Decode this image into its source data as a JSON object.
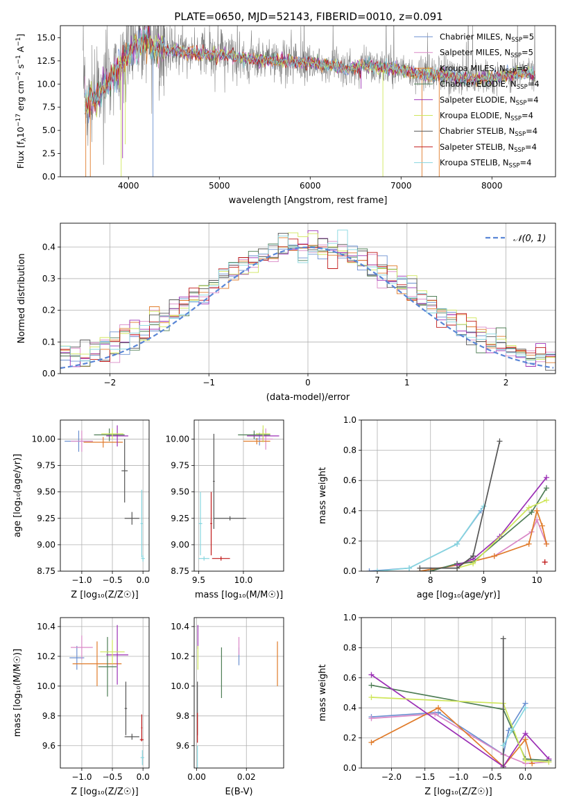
{
  "title": "PLATE=0650, MJD=52143, FIBERID=0010, z=0.091",
  "series": [
    {
      "name": "Chabrier MILES, N_SSP=5",
      "label_main": "Chabrier MILES, N",
      "label_sub": "SSP",
      "label_tail": "=5",
      "color": "#6a8fd0"
    },
    {
      "name": "Salpeter MILES, N_SSP=5",
      "label_main": "Salpeter MILES, N",
      "label_sub": "SSP",
      "label_tail": "=5",
      "color": "#d988c6"
    },
    {
      "name": "Kroupa MILES, N_SSP=6",
      "label_main": "Kroupa MILES, N",
      "label_sub": "SSP",
      "label_tail": "=6",
      "color": "#e07b2a"
    },
    {
      "name": "Chabrier ELODIE, N_SSP=4",
      "label_main": "Chabrier ELODIE, N",
      "label_sub": "SSP",
      "label_tail": "=4",
      "color": "#4e7d55"
    },
    {
      "name": "Salpeter ELODIE, N_SSP=4",
      "label_main": "Salpeter ELODIE, N",
      "label_sub": "SSP",
      "label_tail": "=4",
      "color": "#9b2fb5"
    },
    {
      "name": "Kroupa ELODIE, N_SSP=4",
      "label_main": "Kroupa ELODIE, N",
      "label_sub": "SSP",
      "label_tail": "=4",
      "color": "#cfe65a"
    },
    {
      "name": "Chabrier STELIB, N_SSP=4",
      "label_main": "Chabrier STELIB, N",
      "label_sub": "SSP",
      "label_tail": "=4",
      "color": "#555555"
    },
    {
      "name": "Salpeter STELIB, N_SSP=4",
      "label_main": "Salpeter STELIB, N",
      "label_sub": "SSP",
      "label_tail": "=4",
      "color": "#c01818"
    },
    {
      "name": "Kroupa STELIB, N_SSP=4",
      "label_main": "Kroupa STELIB, N",
      "label_sub": "SSP",
      "label_tail": "=4",
      "color": "#86d6df"
    }
  ],
  "chart_data": [
    {
      "id": "spectrum",
      "type": "line",
      "xlabel": "wavelength [Angstrom, rest frame]",
      "ylabel": "Flux [f_λ 10^-17 erg cm^-2 s^-1 A^-1]",
      "ylabel_text": "Flux [f",
      "xlim": [
        3250,
        8700
      ],
      "ylim": [
        0,
        16.3
      ],
      "xticks": [
        4000,
        5000,
        6000,
        7000,
        8000
      ],
      "yticks": [
        0.0,
        2.5,
        5.0,
        7.5,
        10.0,
        12.5,
        15.0
      ],
      "grid": false,
      "legend": "right",
      "continuum": [
        {
          "x": 3520,
          "y": 8.0
        },
        {
          "x": 3600,
          "y": 8.3
        },
        {
          "x": 3700,
          "y": 9.0
        },
        {
          "x": 3800,
          "y": 10.6
        },
        {
          "x": 3900,
          "y": 12.0
        },
        {
          "x": 4000,
          "y": 13.2
        },
        {
          "x": 4100,
          "y": 14.0
        },
        {
          "x": 4200,
          "y": 14.5
        },
        {
          "x": 4300,
          "y": 13.8
        },
        {
          "x": 4500,
          "y": 13.6
        },
        {
          "x": 4700,
          "y": 13.3
        },
        {
          "x": 5000,
          "y": 13.2
        },
        {
          "x": 5300,
          "y": 12.7
        },
        {
          "x": 5600,
          "y": 12.6
        },
        {
          "x": 6000,
          "y": 12.3
        },
        {
          "x": 6200,
          "y": 12.1
        },
        {
          "x": 6400,
          "y": 11.6
        },
        {
          "x": 6600,
          "y": 12.0
        },
        {
          "x": 6800,
          "y": 11.8
        },
        {
          "x": 7000,
          "y": 11.5
        },
        {
          "x": 7200,
          "y": 11.2
        },
        {
          "x": 7400,
          "y": 11.0
        },
        {
          "x": 7600,
          "y": 10.8
        },
        {
          "x": 7800,
          "y": 10.5
        },
        {
          "x": 8000,
          "y": 10.6
        },
        {
          "x": 8200,
          "y": 11.0
        },
        {
          "x": 8400,
          "y": 11.2
        },
        {
          "x": 8450,
          "y": 11.0
        }
      ],
      "dips": [
        {
          "series": 2,
          "x": 3530,
          "y": 0
        },
        {
          "series": 2,
          "x": 3580,
          "y": 0
        },
        {
          "series": 5,
          "x": 3920,
          "y": 0
        },
        {
          "series": 4,
          "x": 3935,
          "y": 2.0
        },
        {
          "series": 5,
          "x": 3965,
          "y": 3.5
        },
        {
          "series": 0,
          "x": 4270,
          "y": 0
        },
        {
          "series": 4,
          "x": 6560,
          "y": 9.5
        },
        {
          "series": 5,
          "x": 6800,
          "y": 0
        },
        {
          "series": 2,
          "x": 7230,
          "y": 0
        },
        {
          "series": 2,
          "x": 7420,
          "y": 0
        }
      ]
    },
    {
      "id": "residuals",
      "type": "histogram",
      "xlabel": "(data-model)/error",
      "ylabel": "Normed distribution",
      "xlim": [
        -2.5,
        2.5
      ],
      "ylim": [
        0,
        0.475
      ],
      "xticks": [
        -2,
        -1,
        0,
        1,
        2
      ],
      "yticks": [
        0.0,
        0.1,
        0.2,
        0.3,
        0.4
      ],
      "grid": true,
      "legend": "top-right",
      "reference": {
        "name": "N(0,1)",
        "label": "𝒩(0, 1)",
        "mean": 0,
        "sigma": 1,
        "color": "#5a86d6"
      }
    },
    {
      "id": "age_vs_Z",
      "type": "errorbar",
      "xlabel": "Z [log₁₀(Z/Z☉)]",
      "ylabel": "age  [log₁₀(age/yr)]",
      "xlim": [
        -1.35,
        0.1
      ],
      "ylim": [
        8.75,
        10.18
      ],
      "xticks": [
        -1.0,
        -0.5,
        0.0
      ],
      "yticks": [
        8.75,
        9.0,
        9.25,
        9.5,
        9.75,
        10.0
      ],
      "grid": true,
      "points": [
        {
          "series": 0,
          "x": -1.05,
          "xerr": 0.23,
          "y": 9.98,
          "yerr": 0.1
        },
        {
          "series": 1,
          "x": -1.0,
          "xerr": 0.18,
          "y": 9.98,
          "yerr": 0.1
        },
        {
          "series": 2,
          "x": -0.65,
          "xerr": 0.32,
          "y": 9.97,
          "yerr": 0.05
        },
        {
          "series": 3,
          "x": -0.55,
          "xerr": 0.25,
          "y": 10.04,
          "yerr": 0.06
        },
        {
          "series": 4,
          "x": -0.42,
          "xerr": 0.18,
          "y": 10.03,
          "yerr": 0.1
        },
        {
          "series": 5,
          "x": -0.5,
          "xerr": 0.18,
          "y": 10.05,
          "yerr": 0.05
        },
        {
          "series": 6,
          "x": -0.3,
          "xerr": 0.05,
          "y": 9.7,
          "yerr": 0.3
        },
        {
          "series": 6,
          "x": -0.18,
          "xerr": 0.12,
          "y": 9.25,
          "yerr": 0.06
        },
        {
          "series": 8,
          "x": -0.02,
          "xerr": 0.02,
          "y": 9.2,
          "yerr": 0.32
        },
        {
          "series": 8,
          "x": 0.0,
          "xerr": 0.03,
          "y": 8.87,
          "yerr": 0.03
        }
      ]
    },
    {
      "id": "age_vs_mass",
      "type": "errorbar",
      "xlabel": "mass [log₁₀(M/M☉)]",
      "ylabel": "",
      "xlim": [
        9.45,
        10.45
      ],
      "ylim": [
        8.75,
        10.18
      ],
      "xticks": [
        9.5,
        10.0
      ],
      "yticks": [
        8.75,
        9.0,
        9.25,
        9.5,
        9.75,
        10.0
      ],
      "grid": true,
      "points": [
        {
          "series": 0,
          "x": 10.18,
          "xerr": 0.05,
          "y": 10.0,
          "yerr": 0.06
        },
        {
          "series": 1,
          "x": 10.25,
          "xerr": 0.08,
          "y": 10.0,
          "yerr": 0.1
        },
        {
          "series": 2,
          "x": 10.15,
          "xerr": 0.15,
          "y": 9.98,
          "yerr": 0.03
        },
        {
          "series": 3,
          "x": 10.12,
          "xerr": 0.18,
          "y": 10.04,
          "yerr": 0.04
        },
        {
          "series": 4,
          "x": 10.22,
          "xerr": 0.18,
          "y": 10.03,
          "yerr": 0.06
        },
        {
          "series": 5,
          "x": 10.22,
          "xerr": 0.08,
          "y": 10.05,
          "yerr": 0.08
        },
        {
          "series": 6,
          "x": 9.67,
          "xerr": 0.01,
          "y": 9.6,
          "yerr": 0.45
        },
        {
          "series": 6,
          "x": 9.85,
          "xerr": 0.18,
          "y": 9.25,
          "yerr": 0.02
        },
        {
          "series": 7,
          "x": 9.64,
          "xerr": 0.01,
          "y": 9.2,
          "yerr": 0.3
        },
        {
          "series": 7,
          "x": 9.75,
          "xerr": 0.1,
          "y": 8.87,
          "yerr": 0.02
        },
        {
          "series": 8,
          "x": 9.52,
          "xerr": 0.02,
          "y": 9.2,
          "yerr": 0.3
        },
        {
          "series": 8,
          "x": 9.56,
          "xerr": 0.06,
          "y": 8.87,
          "yerr": 0.02
        }
      ]
    },
    {
      "id": "massweight_vs_age",
      "type": "line",
      "xlabel": "age  [log₁₀(age/yr)]",
      "ylabel": "mass weight",
      "xlim": [
        6.7,
        10.35
      ],
      "ylim": [
        0,
        1.0
      ],
      "xticks": [
        7,
        8,
        9,
        10
      ],
      "yticks": [
        0.0,
        0.2,
        0.4,
        0.6,
        0.8,
        1.0
      ],
      "grid": true,
      "lines": [
        {
          "series": 0,
          "points": [
            [
              6.85,
              0.0
            ],
            [
              7.6,
              0.02
            ],
            [
              8.5,
              0.18
            ],
            [
              8.95,
              0.4
            ]
          ]
        },
        {
          "series": 8,
          "points": [
            [
              7.0,
              0.0
            ],
            [
              7.6,
              0.02
            ],
            [
              8.5,
              0.18
            ],
            [
              9.0,
              0.43
            ]
          ]
        },
        {
          "series": 1,
          "points": [
            [
              8.0,
              0.01
            ],
            [
              8.5,
              0.04
            ],
            [
              9.2,
              0.1
            ],
            [
              9.9,
              0.26
            ],
            [
              10.0,
              0.34
            ],
            [
              10.18,
              0.18
            ]
          ]
        },
        {
          "series": 2,
          "points": [
            [
              7.8,
              0.0
            ],
            [
              8.5,
              0.04
            ],
            [
              9.2,
              0.1
            ],
            [
              9.85,
              0.18
            ],
            [
              10.0,
              0.4
            ],
            [
              10.1,
              0.3
            ],
            [
              10.18,
              0.18
            ]
          ]
        },
        {
          "series": 3,
          "points": [
            [
              8.0,
              0.0
            ],
            [
              8.5,
              0.05
            ],
            [
              8.8,
              0.06
            ],
            [
              9.9,
              0.39
            ],
            [
              10.18,
              0.55
            ]
          ]
        },
        {
          "series": 4,
          "points": [
            [
              8.5,
              0.04
            ],
            [
              8.8,
              0.08
            ],
            [
              9.3,
              0.23
            ],
            [
              10.18,
              0.62
            ]
          ]
        },
        {
          "series": 5,
          "points": [
            [
              8.5,
              0.02
            ],
            [
              8.8,
              0.05
            ],
            [
              9.85,
              0.42
            ],
            [
              10.18,
              0.47
            ]
          ]
        },
        {
          "series": 6,
          "points": [
            [
              7.8,
              0.02
            ],
            [
              8.5,
              0.02
            ],
            [
              8.8,
              0.1
            ],
            [
              9.3,
              0.86
            ]
          ]
        },
        {
          "series": 7,
          "points": [
            [
              10.15,
              0.06
            ]
          ]
        }
      ]
    },
    {
      "id": "mass_vs_Z",
      "type": "errorbar",
      "xlabel": "Z [log₁₀(Z/Z☉)]",
      "ylabel": "mass [log₁₀(M/M☉)]",
      "xlim": [
        -1.35,
        0.1
      ],
      "ylim": [
        9.45,
        10.46
      ],
      "xticks": [
        -1.0,
        -0.5,
        0.0
      ],
      "yticks": [
        9.6,
        9.8,
        10.0,
        10.2,
        10.4
      ],
      "grid": true,
      "points": [
        {
          "series": 0,
          "x": -1.08,
          "xerr": 0.12,
          "y": 10.19,
          "yerr": 0.08
        },
        {
          "series": 1,
          "x": -1.0,
          "xerr": 0.18,
          "y": 10.26,
          "yerr": 0.08
        },
        {
          "series": 2,
          "x": -0.75,
          "xerr": 0.4,
          "y": 10.15,
          "yerr": 0.15
        },
        {
          "series": 3,
          "x": -0.58,
          "xerr": 0.15,
          "y": 10.13,
          "yerr": 0.2
        },
        {
          "series": 4,
          "x": -0.42,
          "xerr": 0.18,
          "y": 10.21,
          "yerr": 0.2
        },
        {
          "series": 5,
          "x": -0.5,
          "xerr": 0.2,
          "y": 10.23,
          "yerr": 0.08
        },
        {
          "series": 6,
          "x": -0.28,
          "xerr": 0.02,
          "y": 9.85,
          "yerr": 0.18
        },
        {
          "series": 6,
          "x": -0.18,
          "xerr": 0.12,
          "y": 9.66,
          "yerr": 0.02
        },
        {
          "series": 7,
          "x": -0.02,
          "xerr": 0.01,
          "y": 9.72,
          "yerr": 0.09
        },
        {
          "series": 7,
          "x": -0.02,
          "xerr": 0.03,
          "y": 9.64,
          "yerr": 0.01
        },
        {
          "series": 8,
          "x": -0.01,
          "xerr": 0.03,
          "y": 9.52,
          "yerr": 0.05
        }
      ]
    },
    {
      "id": "mass_vs_ebv",
      "type": "errorbar",
      "xlabel": "E(B-V)",
      "ylabel": "",
      "xlim": [
        -0.001,
        0.035
      ],
      "ylim": [
        9.45,
        10.46
      ],
      "xticks": [
        0.0,
        0.02
      ],
      "yticks": [
        9.6,
        9.8,
        10.0,
        10.2,
        10.4
      ],
      "grid": true,
      "points": [
        {
          "series": 0,
          "x": 0.017,
          "xerr": 0,
          "y": 10.2,
          "yerr": 0.06
        },
        {
          "series": 1,
          "x": 0.017,
          "xerr": 0,
          "y": 10.27,
          "yerr": 0.06
        },
        {
          "series": 2,
          "x": 0.0325,
          "xerr": 0,
          "y": 10.15,
          "yerr": 0.15
        },
        {
          "series": 3,
          "x": 0.01,
          "xerr": 0,
          "y": 10.09,
          "yerr": 0.17
        },
        {
          "series": 4,
          "x": 0.0005,
          "xerr": 0,
          "y": 10.33,
          "yerr": 0.08
        },
        {
          "series": 5,
          "x": 0.0005,
          "xerr": 0,
          "y": 10.19,
          "yerr": 0.08
        },
        {
          "series": 6,
          "x": 0.0003,
          "xerr": 0,
          "y": 9.85,
          "yerr": 0.18
        },
        {
          "series": 7,
          "x": 0.0003,
          "xerr": 0,
          "y": 9.72,
          "yerr": 0.1
        },
        {
          "series": 8,
          "x": 0.0003,
          "xerr": 0,
          "y": 9.52,
          "yerr": 0.08
        }
      ]
    },
    {
      "id": "massweight_vs_Z",
      "type": "line",
      "xlabel": "Z [log₁₀(Z/Z☉)]",
      "ylabel": "mass weight",
      "xlim": [
        -2.45,
        0.45
      ],
      "ylim": [
        0,
        1.0
      ],
      "xticks": [
        -2.0,
        -1.5,
        -1.0,
        -0.5,
        0.0
      ],
      "yticks": [
        0.0,
        0.2,
        0.4,
        0.6,
        0.8,
        1.0
      ],
      "grid": true,
      "lines": [
        {
          "series": 0,
          "points": [
            [
              -2.3,
              0.34
            ],
            [
              -1.3,
              0.37
            ],
            [
              -0.33,
              0.09
            ],
            [
              -0.25,
              0.25
            ],
            [
              0.0,
              0.43
            ]
          ]
        },
        {
          "series": 1,
          "points": [
            [
              -2.3,
              0.33
            ],
            [
              -1.35,
              0.36
            ],
            [
              -0.33,
              0.09
            ],
            [
              0.0,
              0.03
            ],
            [
              0.35,
              0.04
            ]
          ]
        },
        {
          "series": 2,
          "points": [
            [
              -2.3,
              0.17
            ],
            [
              -1.3,
              0.4
            ],
            [
              -0.33,
              0.01
            ],
            [
              0.0,
              0.19
            ],
            [
              0.1,
              0.03
            ]
          ]
        },
        {
          "series": 3,
          "points": [
            [
              -2.3,
              0.55
            ],
            [
              -0.33,
              0.39
            ],
            [
              0.0,
              0.06
            ],
            [
              0.35,
              0.05
            ]
          ]
        },
        {
          "series": 4,
          "points": [
            [
              -2.3,
              0.62
            ],
            [
              -0.33,
              0.01
            ],
            [
              0.0,
              0.23
            ],
            [
              0.35,
              0.06
            ]
          ]
        },
        {
          "series": 5,
          "points": [
            [
              -2.3,
              0.47
            ],
            [
              -0.33,
              0.43
            ],
            [
              0.0,
              0.05
            ],
            [
              0.35,
              0.04
            ]
          ]
        },
        {
          "series": 6,
          "points": [
            [
              -0.33,
              0.86
            ],
            [
              -0.33,
              0.0
            ]
          ]
        },
        {
          "series": 8,
          "points": [
            [
              -0.33,
              0.15
            ],
            [
              -0.2,
              0.25
            ],
            [
              0.0,
              0.4
            ]
          ]
        }
      ]
    }
  ]
}
